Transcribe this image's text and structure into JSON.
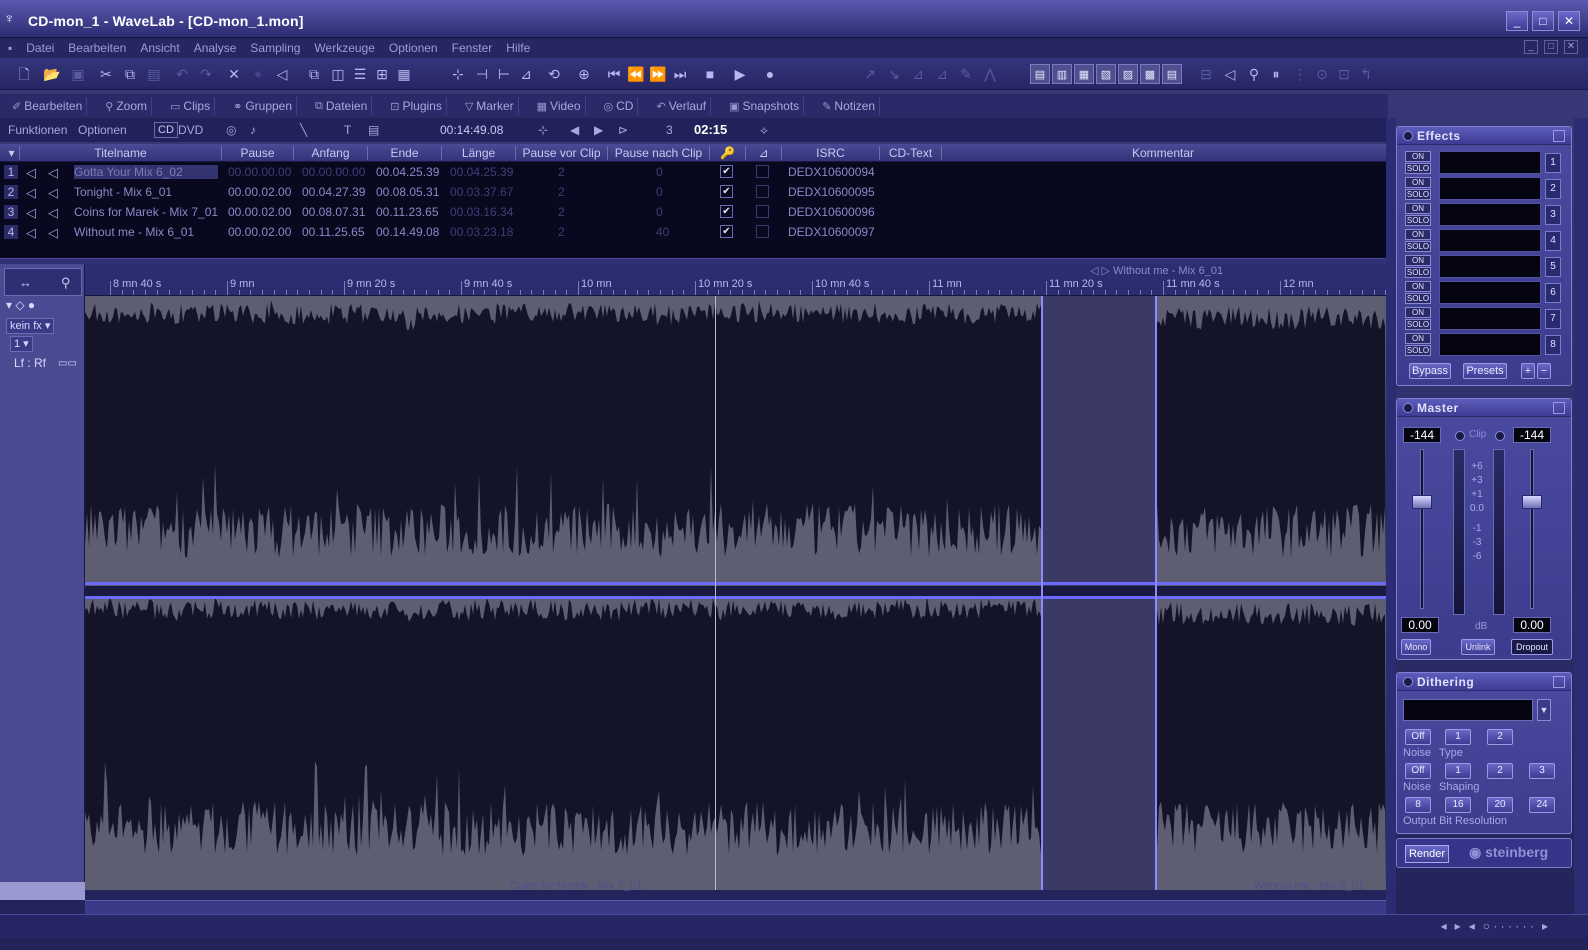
{
  "window": {
    "title": "CD-mon_1 - WaveLab - [CD-mon_1.mon]",
    "controls": [
      "_",
      "□",
      "✕"
    ]
  },
  "menu": [
    "Datei",
    "Bearbeiten",
    "Ansicht",
    "Analyse",
    "Sampling",
    "Werkzeuge",
    "Optionen",
    "Fenster",
    "Hilfe"
  ],
  "tabs": [
    {
      "label": "Bearbeiten",
      "icon": "edit-icon"
    },
    {
      "label": "Zoom",
      "icon": "zoom-icon"
    },
    {
      "label": "Clips",
      "icon": "clips-icon"
    },
    {
      "label": "Gruppen",
      "icon": "groups-icon"
    },
    {
      "label": "Dateien",
      "icon": "files-icon"
    },
    {
      "label": "Plugins",
      "icon": "plugins-icon"
    },
    {
      "label": "Marker",
      "icon": "marker-icon"
    },
    {
      "label": "Video",
      "icon": "video-icon"
    },
    {
      "label": "CD",
      "icon": "cd-icon"
    },
    {
      "label": "Verlauf",
      "icon": "history-icon"
    },
    {
      "label": "Snapshots",
      "icon": "camera-icon"
    },
    {
      "label": "Notizen",
      "icon": "notes-icon"
    }
  ],
  "toolbar3": {
    "funktionen": "Funktionen",
    "optionen": "Optionen",
    "cd": "CD",
    "dvd": "DVD",
    "time": "00:14:49.08",
    "count": "3",
    "duration": "02:15"
  },
  "table": {
    "headers": [
      "Titelname",
      "Pause",
      "Anfang",
      "Ende",
      "Länge",
      "Pause vor Clip",
      "Pause nach Clip",
      "ISRC",
      "CD-Text",
      "Kommentar"
    ],
    "rows": [
      {
        "num": "1",
        "name": "Gotta Your Mix 6_02",
        "pause": "00.00.00.00",
        "anfang": "00.00.00.00",
        "ende": "00.04.25.39",
        "laenge": "00.04.25.39",
        "pv": "2",
        "pn": "0",
        "isrc": "DEDX10600094",
        "selected": true
      },
      {
        "num": "2",
        "name": "Tonight - Mix 6_01",
        "pause": "00.00.02.00",
        "anfang": "00.04.27.39",
        "ende": "00.08.05.31",
        "laenge": "00.03.37.67",
        "pv": "2",
        "pn": "0",
        "isrc": "DEDX10600095",
        "selected": false
      },
      {
        "num": "3",
        "name": "Coins for Marek - Mix 7_01",
        "pause": "00.00.02.00",
        "anfang": "00.08.07.31",
        "ende": "00.11.23.65",
        "laenge": "00.03.16.34",
        "pv": "2",
        "pn": "0",
        "isrc": "DEDX10600096",
        "selected": false
      },
      {
        "num": "4",
        "name": "Without me - Mix 6_01",
        "pause": "00.00.02.00",
        "anfang": "00.11.25.65",
        "ende": "00.14.49.08",
        "laenge": "00.03.23.18",
        "pv": "2",
        "pn": "40",
        "isrc": "DEDX10600097",
        "selected": false
      }
    ]
  },
  "leftpane": {
    "fx": "kein fx",
    "channel": "1",
    "route": "Lf : Rf"
  },
  "ruler": {
    "labels": [
      "8 mn 40 s",
      "9 mn",
      "9 mn 20 s",
      "9 mn 40 s",
      "10 mn",
      "10 mn 20 s",
      "10 mn 40 s",
      "11 mn",
      "11 mn 20 s",
      "11 mn 40 s",
      "12 mn"
    ],
    "marker": "Without me - Mix 6_01"
  },
  "clips": {
    "clip3": "Coins for Marek - Mix 7_01",
    "clip4": "Without me - Mix 6_01"
  },
  "effects": {
    "title": "Effects",
    "on": "ON",
    "solo": "SOLO",
    "slots": [
      "1",
      "2",
      "3",
      "4",
      "5",
      "6",
      "7",
      "8"
    ],
    "bypass": "Bypass",
    "presets": "Presets"
  },
  "master": {
    "title": "Master",
    "left_peak": "-144",
    "right_peak": "-144",
    "clip": "Clip",
    "left_gain": "0.00",
    "right_gain": "0.00",
    "db": "dB",
    "scale": [
      "+6",
      "+3",
      "+1",
      "0.0",
      "-1",
      "-3",
      "-6"
    ],
    "mono": "Mono",
    "unlink": "Unlink",
    "dropout": "Dropout"
  },
  "dithering": {
    "title": "Dithering",
    "noise_type_opts": [
      "Off",
      "1",
      "2"
    ],
    "noise_type_label": [
      "Noise",
      "Type"
    ],
    "noise_shaping_opts": [
      "Off",
      "1",
      "2",
      "3"
    ],
    "noise_shaping_label": [
      "Noise",
      "Shaping"
    ],
    "bits": [
      "8",
      "16",
      "20",
      "24"
    ],
    "bits_label": "Output Bit Resolution"
  },
  "render": {
    "label": "Render",
    "brand": "steinberg"
  },
  "colors": {
    "accent": "#5a5ab0",
    "wave_bg": "#5e5e72",
    "wave_fill": "#141428",
    "wave_glow": "#6a6aff"
  }
}
